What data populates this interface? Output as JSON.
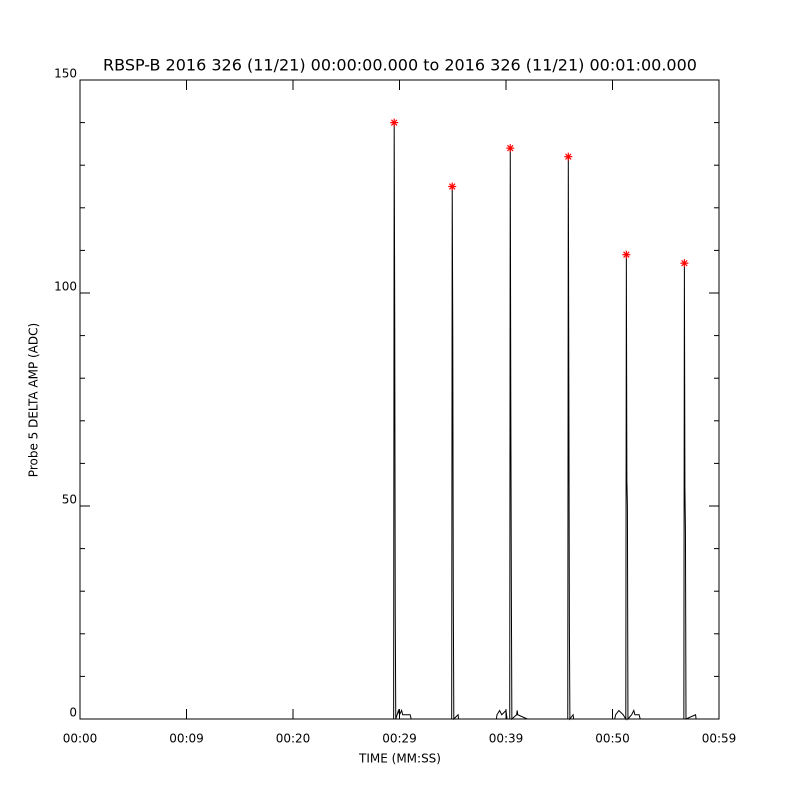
{
  "chart_data": {
    "type": "line",
    "title": "RBSP-B 2016 326 (11/21) 00:00:00.000 to 2016 326 (11/21) 00:01:00.000",
    "xlabel": "TIME (MM:SS)",
    "ylabel": "Probe 5 DELTA AMP (ADC)",
    "xlim": [
      0,
      60
    ],
    "ylim": [
      0,
      150
    ],
    "xticks": [
      {
        "value": 0,
        "label": "00:00"
      },
      {
        "value": 10,
        "label": "00:09"
      },
      {
        "value": 20,
        "label": "00:20"
      },
      {
        "value": 30,
        "label": "00:29"
      },
      {
        "value": 40,
        "label": "00:39"
      },
      {
        "value": 50,
        "label": "00:50"
      },
      {
        "value": 60,
        "label": "00:59"
      }
    ],
    "yticks": [
      0,
      50,
      100,
      150
    ],
    "yminorticks": [
      10,
      20,
      30,
      40,
      60,
      70,
      80,
      90,
      110,
      120,
      130,
      140
    ],
    "series": [
      {
        "color": "#000000",
        "x": [
          28,
          29.45,
          29.5,
          29.55,
          29.6,
          29.65,
          29.9,
          30.0,
          30.2,
          30.3,
          31.0,
          31.1,
          34.9,
          34.95,
          35.0,
          35.05,
          35.1,
          35.5,
          35.55,
          39.1,
          39.15,
          39.4,
          39.6,
          40.0,
          40.1,
          40.35,
          40.4,
          40.45,
          40.5,
          40.55,
          41.0,
          41.05,
          41.1,
          42.0,
          45.8,
          45.85,
          45.9,
          45.95,
          46.0,
          46.3,
          46.35,
          50.2,
          50.3,
          50.6,
          51.0,
          51.25,
          51.3,
          51.35,
          51.4,
          51.45,
          51.8,
          52.0,
          52.1,
          52.5,
          52.6,
          56.7,
          56.75,
          56.8,
          56.85,
          56.9,
          57.8,
          57.85
        ],
        "values": [
          0,
          0,
          140,
          95,
          25,
          0,
          2,
          1,
          2,
          1,
          1,
          0,
          0,
          125,
          92,
          30,
          0,
          1,
          0,
          0,
          1,
          2,
          1,
          2,
          0,
          0,
          134,
          75,
          32,
          0,
          1,
          2,
          1,
          0,
          0,
          132,
          77,
          22,
          0,
          1,
          0,
          0,
          1,
          2,
          1,
          0,
          109,
          56,
          50,
          0,
          1,
          2,
          1,
          1,
          0,
          0,
          107,
          54,
          44,
          0,
          1,
          0
        ]
      },
      {
        "color": "#ff0000",
        "marker": "asterisk",
        "x": [
          29.5,
          34.95,
          40.4,
          45.85,
          51.3,
          56.75
        ],
        "values": [
          140,
          125,
          134,
          132,
          109,
          107
        ]
      }
    ]
  }
}
